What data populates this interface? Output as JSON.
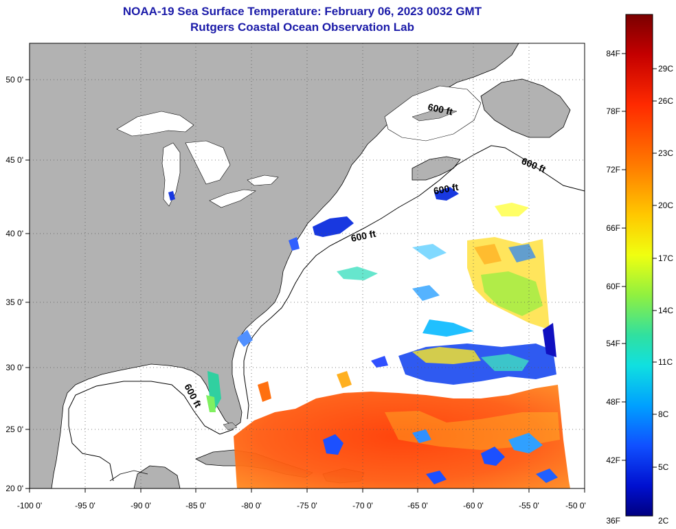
{
  "title": {
    "line1": "NOAA-19 Sea Surface Temperature:  February 06, 2023 0032 GMT",
    "line2": "Rutgers Coastal Ocean Observation Lab"
  },
  "axes": {
    "x_ticks": [
      "-100 0'",
      "-95 0'",
      "-90 0'",
      "-85 0'",
      "-80 0'",
      "-75 0'",
      "-70 0'",
      "-65 0'",
      "-60 0'",
      "-55 0'",
      "-50 0'"
    ],
    "y_ticks": [
      "50 0'",
      "45 0'",
      "40 0'",
      "35 0'",
      "30 0'",
      "25 0'",
      "20 0'"
    ]
  },
  "depth_labels": [
    "600 ft",
    "600 ft",
    "600 ft",
    "600 ft",
    "600 ft"
  ],
  "colorbar": {
    "f_labels": [
      "84F",
      "78F",
      "72F",
      "66F",
      "60F",
      "54F",
      "48F",
      "42F",
      "36F"
    ],
    "c_labels": [
      "29C",
      "26C",
      "23C",
      "20C",
      "17C",
      "14C",
      "11C",
      "8C",
      "5C",
      "2C"
    ],
    "colors": [
      "#7a0000",
      "#c40000",
      "#ff2a00",
      "#ff7a00",
      "#ffc800",
      "#f0ff10",
      "#90f040",
      "#30e0a0",
      "#10e0e0",
      "#00a0ff",
      "#1050ff",
      "#0010d0",
      "#000080"
    ]
  },
  "colors": {
    "land": "#b2b2b2",
    "ocean": "#ffffff",
    "title": "#1a1aa8"
  }
}
